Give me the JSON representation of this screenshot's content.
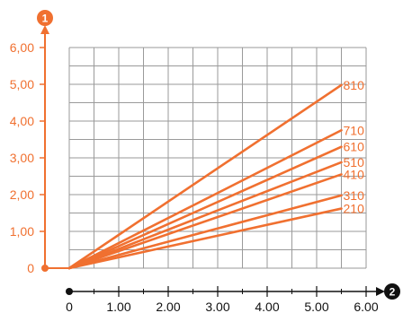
{
  "chart_data": {
    "type": "line",
    "title": "",
    "xlabel": "",
    "ylabel": "",
    "x_marker": "2",
    "y_marker": "1",
    "xlim": [
      0,
      6.0
    ],
    "ylim": [
      0,
      6.0
    ],
    "x_ticks": [
      {
        "value": 0,
        "label": "0"
      },
      {
        "value": 1,
        "label": "1.00"
      },
      {
        "value": 2,
        "label": "2.00"
      },
      {
        "value": 3,
        "label": "3.00"
      },
      {
        "value": 4,
        "label": "4.00"
      },
      {
        "value": 5,
        "label": "5.00"
      },
      {
        "value": 6,
        "label": "6.00"
      }
    ],
    "y_ticks": [
      {
        "value": 0,
        "label": "0"
      },
      {
        "value": 1,
        "label": "1,00"
      },
      {
        "value": 2,
        "label": "2,00"
      },
      {
        "value": 3,
        "label": "3,00"
      },
      {
        "value": 4,
        "label": "4,00"
      },
      {
        "value": 5,
        "label": "5,00"
      },
      {
        "value": 6,
        "label": "6,00"
      }
    ],
    "grid": true,
    "color": "#f07030",
    "series": [
      {
        "name": "810",
        "x": [
          0,
          5.5
        ],
        "y": [
          0,
          4.98
        ]
      },
      {
        "name": "710",
        "x": [
          0,
          5.5
        ],
        "y": [
          0,
          3.75
        ]
      },
      {
        "name": "610",
        "x": [
          0,
          5.5
        ],
        "y": [
          0,
          3.3
        ]
      },
      {
        "name": "510",
        "x": [
          0,
          5.5
        ],
        "y": [
          0,
          2.88
        ]
      },
      {
        "name": "410",
        "x": [
          0,
          5.5
        ],
        "y": [
          0,
          2.55
        ]
      },
      {
        "name": "310",
        "x": [
          0,
          5.5
        ],
        "y": [
          0,
          1.98
        ]
      },
      {
        "name": "210",
        "x": [
          0,
          5.5
        ],
        "y": [
          0,
          1.62
        ]
      }
    ]
  }
}
